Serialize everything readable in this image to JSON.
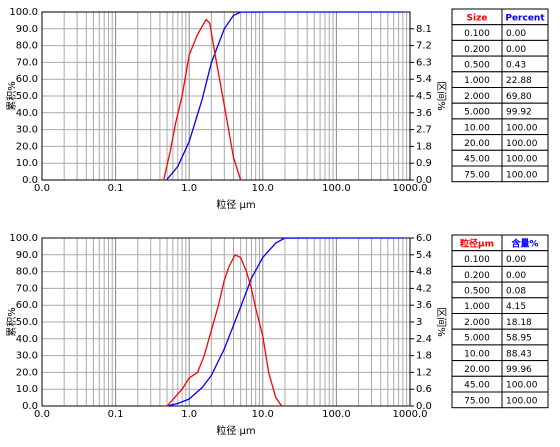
{
  "chart_data": [
    {
      "type": "line",
      "log_x": true,
      "grid": true,
      "minor_grid": true,
      "y_label": "累积%",
      "y2_label": "区间%",
      "x_label": "粒径 μm",
      "xlim": [
        0.01,
        1000
      ],
      "xticks": [
        {
          "value": 0.01,
          "label": "0.0"
        },
        0.1,
        {
          "value": 1,
          "label": "1.0"
        },
        {
          "value": 10,
          "label": "10.0"
        },
        {
          "value": 100,
          "label": "100.0"
        },
        {
          "value": 1000,
          "label": "1000.0"
        }
      ],
      "ylim": [
        0,
        100
      ],
      "yticks": [
        {
          "value": 0,
          "label": "0.0"
        },
        {
          "value": 10,
          "label": "10.0"
        },
        {
          "value": 20,
          "label": "20.0"
        },
        {
          "value": 30,
          "label": "30.0"
        },
        {
          "value": 40,
          "label": "40.0"
        },
        {
          "value": 50,
          "label": "50.0"
        },
        {
          "value": 60,
          "label": "60.0"
        },
        {
          "value": 70,
          "label": "70.0"
        },
        {
          "value": 80,
          "label": "80.0"
        },
        {
          "value": 90,
          "label": "90.0"
        },
        {
          "value": 100,
          "label": "100.0"
        }
      ],
      "y2lim": [
        0,
        9
      ],
      "y2ticks": [
        {
          "value": 0,
          "label": "0.0"
        },
        0.9,
        1.8,
        2.7,
        3.6,
        4.5,
        5.4,
        6.3,
        7.2,
        8.1
      ],
      "series": [
        {
          "color": "#0000ff",
          "axis": "y",
          "x": [
            0.5,
            0.7,
            1,
            1.5,
            2,
            3,
            4,
            5,
            10,
            100,
            800
          ],
          "values": [
            0.43,
            8,
            22.88,
            48,
            69.8,
            90,
            98,
            99.92,
            100,
            100,
            100
          ]
        },
        {
          "color": "#ff0000",
          "axis": "y2",
          "x": [
            0.45,
            0.55,
            0.65,
            0.8,
            1,
            1.3,
            1.7,
            1.9,
            2.3,
            3,
            4,
            5
          ],
          "values": [
            0,
            1.5,
            3,
            4.5,
            6.7,
            7.8,
            8.6,
            8.4,
            6.5,
            4,
            1.2,
            0
          ]
        }
      ],
      "table": {
        "header": [
          "Size",
          "Percent"
        ],
        "header_colors": [
          "#ff0000",
          "#0000ff"
        ],
        "rows": [
          [
            "0.100",
            "0.00"
          ],
          [
            "0.200",
            "0.00"
          ],
          [
            "0.500",
            "0.43"
          ],
          [
            "1.000",
            "22.88"
          ],
          [
            "2.000",
            "69.80"
          ],
          [
            "5.000",
            "99.92"
          ],
          [
            "10.00",
            "100.00"
          ],
          [
            "20.00",
            "100.00"
          ],
          [
            "45.00",
            "100.00"
          ],
          [
            "75.00",
            "100.00"
          ]
        ]
      }
    },
    {
      "type": "line",
      "log_x": true,
      "grid": true,
      "minor_grid": true,
      "y_label": "累积%",
      "y2_label": "区间%",
      "x_label": "粒径 μm",
      "xlim": [
        0.01,
        1000
      ],
      "xticks": [
        {
          "value": 0.01,
          "label": "0.0"
        },
        0.1,
        {
          "value": 1,
          "label": "1.0"
        },
        {
          "value": 10,
          "label": "10.0"
        },
        {
          "value": 100,
          "label": "100.0"
        },
        {
          "value": 1000,
          "label": "1000.0"
        }
      ],
      "ylim": [
        0,
        100
      ],
      "yticks": [
        {
          "value": 0,
          "label": "0.0"
        },
        {
          "value": 10,
          "label": "10.0"
        },
        {
          "value": 20,
          "label": "20.0"
        },
        {
          "value": 30,
          "label": "30.0"
        },
        {
          "value": 40,
          "label": "40.0"
        },
        {
          "value": 50,
          "label": "50.0"
        },
        {
          "value": 60,
          "label": "60.0"
        },
        {
          "value": 70,
          "label": "70.0"
        },
        {
          "value": 80,
          "label": "80.0"
        },
        {
          "value": 90,
          "label": "90.0"
        },
        {
          "value": 100,
          "label": "100.0"
        }
      ],
      "y2lim": [
        0,
        6
      ],
      "y2ticks": [
        {
          "value": 0,
          "label": "0.0"
        },
        0.6,
        1.2,
        1.8,
        2.4,
        3,
        3.6,
        4.2,
        4.8,
        5.4,
        {
          "value": 6,
          "label": "6.0"
        }
      ],
      "series": [
        {
          "color": "#0000ff",
          "axis": "y",
          "x": [
            0.5,
            0.7,
            1,
            1.5,
            2,
            3,
            5,
            7,
            10,
            15,
            20,
            100,
            800
          ],
          "values": [
            0.08,
            1.5,
            4.15,
            11,
            18.18,
            34,
            58.95,
            76,
            88.43,
            97,
            99.96,
            100,
            100
          ]
        },
        {
          "color": "#ff0000",
          "axis": "y2",
          "x": [
            0.5,
            0.8,
            1,
            1.3,
            1.6,
            2,
            2.5,
            3,
            3.5,
            4.2,
            5,
            6,
            7,
            8,
            10,
            12,
            15,
            18
          ],
          "values": [
            0,
            0.6,
            1,
            1.2,
            1.8,
            2.7,
            3.6,
            4.5,
            5,
            5.4,
            5.3,
            4.8,
            4.2,
            3.5,
            2.5,
            1.2,
            0.3,
            0
          ]
        }
      ],
      "table": {
        "header": [
          "粒径μm",
          "含量%"
        ],
        "header_colors": [
          "#ff0000",
          "#0000ff"
        ],
        "rows": [
          [
            "0.100",
            "0.00"
          ],
          [
            "0.200",
            "0.00"
          ],
          [
            "0.500",
            "0.08"
          ],
          [
            "1.000",
            "4.15"
          ],
          [
            "2.000",
            "18.18"
          ],
          [
            "5.000",
            "58.95"
          ],
          [
            "10.00",
            "88.43"
          ],
          [
            "20.00",
            "99.96"
          ],
          [
            "45.00",
            "100.00"
          ],
          [
            "75.00",
            "100.00"
          ]
        ]
      }
    }
  ]
}
